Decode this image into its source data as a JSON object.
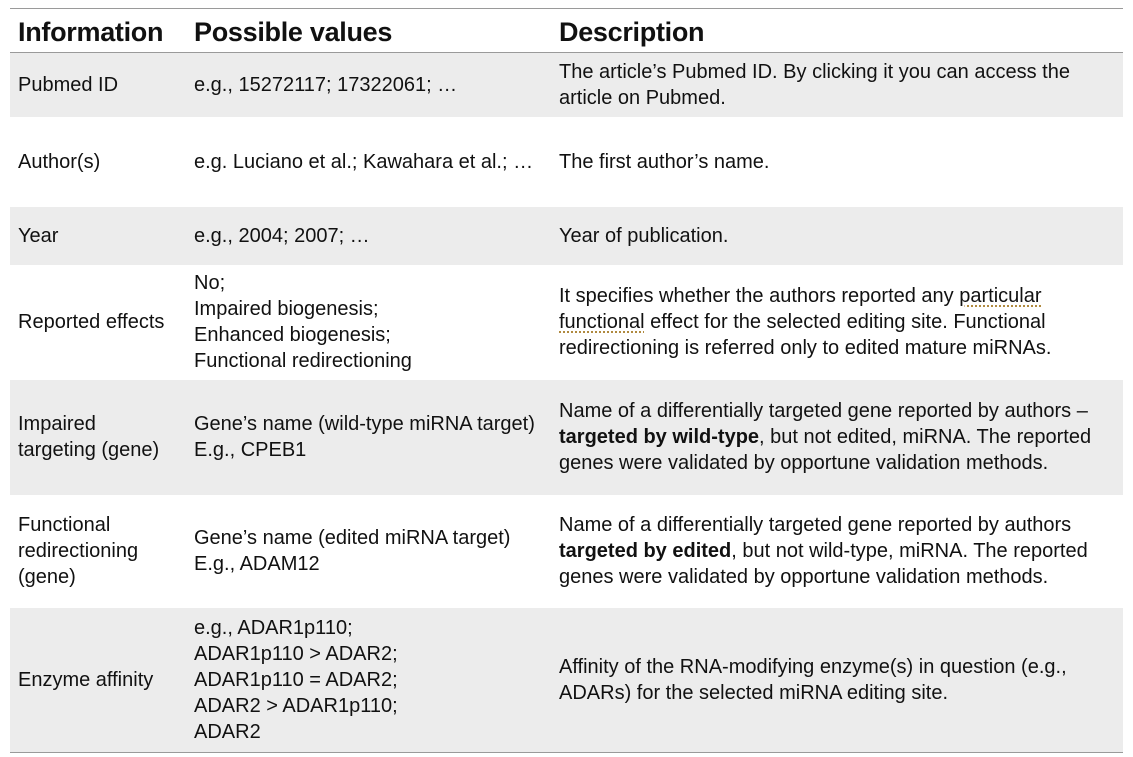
{
  "headers": {
    "information": "Information",
    "possible_values": "Possible values",
    "description": "Description"
  },
  "rows": [
    {
      "information": "Pubmed ID",
      "values": [
        "e.g., 15272117; 17322061; …"
      ],
      "description": "The article’s Pubmed ID. By clicking it you can access the article on Pubmed."
    },
    {
      "information": "Author(s)",
      "values": [
        "e.g. Luciano et al.; Kawahara et al.; …"
      ],
      "description": "The first author’s name."
    },
    {
      "information": "Year",
      "values": [
        "e.g., 2004; 2007; …"
      ],
      "description": "Year of publication."
    },
    {
      "information": "Reported effects",
      "values": [
        "No;",
        "Impaired biogenesis;",
        "Enhanced biogenesis;",
        "Functional redirectioning"
      ],
      "description_parts": {
        "a": "It specifies whether the authors reported any ",
        "b": "particular functional",
        "c": " effect for the selected editing site. Functional redirectioning is referred only to edited mature miRNAs."
      }
    },
    {
      "information": "Impaired targeting (gene)",
      "values": [
        "Gene’s name (wild-type miRNA target)",
        "E.g., CPEB1"
      ],
      "description_parts": {
        "a": "Name of a differentially targeted gene reported by authors – ",
        "b": "targeted by wild-type",
        "c": ", but not edited, miRNA. The reported genes were validated by opportune validation methods."
      }
    },
    {
      "information": "Functional redirectioning (gene)",
      "values": [
        "Gene’s name (edited miRNA target)",
        "E.g., ADAM12"
      ],
      "description_parts": {
        "a": "Name of a differentially targeted gene reported by authors ",
        "b": "targeted by edited",
        "c": ", but not wild-type, miRNA. The reported genes were validated by opportune validation methods."
      }
    },
    {
      "information": "Enzyme affinity",
      "values": [
        "e.g., ADAR1p110;",
        "ADAR1p110 > ADAR2;",
        "ADAR1p110 = ADAR2;",
        "ADAR2 > ADAR1p110;",
        "ADAR2"
      ],
      "description": "Affinity of the RNA-modifying enzyme(s) in question (e.g., ADARs) for the selected miRNA editing site."
    }
  ]
}
